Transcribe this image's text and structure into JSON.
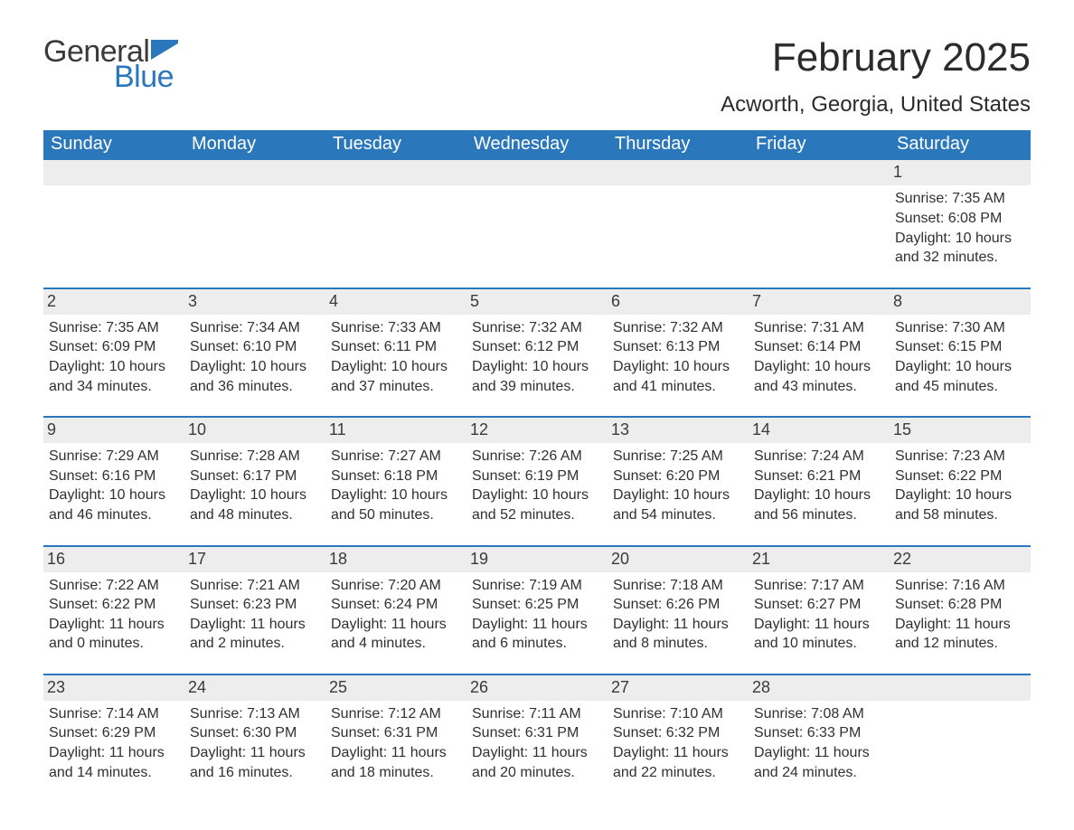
{
  "logo": {
    "word1": "General",
    "word2": "Blue",
    "flag_color": "#2a77bb"
  },
  "title": "February 2025",
  "location": "Acworth, Georgia, United States",
  "colors": {
    "header_bg": "#2a77bb",
    "header_text": "#ffffff",
    "daynum_bg": "#ededed",
    "week_border": "#2a77bb",
    "body_text": "#303030",
    "page_bg": "#ffffff"
  },
  "typography": {
    "title_fontsize": 44,
    "location_fontsize": 24,
    "weekday_fontsize": 20,
    "daynum_fontsize": 18,
    "body_fontsize": 16,
    "font_family": "Segoe UI, Arial, Helvetica, sans-serif"
  },
  "weekdays": [
    "Sunday",
    "Monday",
    "Tuesday",
    "Wednesday",
    "Thursday",
    "Friday",
    "Saturday"
  ],
  "weeks": [
    [
      {
        "n": "",
        "sunrise": "",
        "sunset": "",
        "daylight": ""
      },
      {
        "n": "",
        "sunrise": "",
        "sunset": "",
        "daylight": ""
      },
      {
        "n": "",
        "sunrise": "",
        "sunset": "",
        "daylight": ""
      },
      {
        "n": "",
        "sunrise": "",
        "sunset": "",
        "daylight": ""
      },
      {
        "n": "",
        "sunrise": "",
        "sunset": "",
        "daylight": ""
      },
      {
        "n": "",
        "sunrise": "",
        "sunset": "",
        "daylight": ""
      },
      {
        "n": "1",
        "sunrise": "Sunrise: 7:35 AM",
        "sunset": "Sunset: 6:08 PM",
        "daylight": "Daylight: 10 hours and 32 minutes."
      }
    ],
    [
      {
        "n": "2",
        "sunrise": "Sunrise: 7:35 AM",
        "sunset": "Sunset: 6:09 PM",
        "daylight": "Daylight: 10 hours and 34 minutes."
      },
      {
        "n": "3",
        "sunrise": "Sunrise: 7:34 AM",
        "sunset": "Sunset: 6:10 PM",
        "daylight": "Daylight: 10 hours and 36 minutes."
      },
      {
        "n": "4",
        "sunrise": "Sunrise: 7:33 AM",
        "sunset": "Sunset: 6:11 PM",
        "daylight": "Daylight: 10 hours and 37 minutes."
      },
      {
        "n": "5",
        "sunrise": "Sunrise: 7:32 AM",
        "sunset": "Sunset: 6:12 PM",
        "daylight": "Daylight: 10 hours and 39 minutes."
      },
      {
        "n": "6",
        "sunrise": "Sunrise: 7:32 AM",
        "sunset": "Sunset: 6:13 PM",
        "daylight": "Daylight: 10 hours and 41 minutes."
      },
      {
        "n": "7",
        "sunrise": "Sunrise: 7:31 AM",
        "sunset": "Sunset: 6:14 PM",
        "daylight": "Daylight: 10 hours and 43 minutes."
      },
      {
        "n": "8",
        "sunrise": "Sunrise: 7:30 AM",
        "sunset": "Sunset: 6:15 PM",
        "daylight": "Daylight: 10 hours and 45 minutes."
      }
    ],
    [
      {
        "n": "9",
        "sunrise": "Sunrise: 7:29 AM",
        "sunset": "Sunset: 6:16 PM",
        "daylight": "Daylight: 10 hours and 46 minutes."
      },
      {
        "n": "10",
        "sunrise": "Sunrise: 7:28 AM",
        "sunset": "Sunset: 6:17 PM",
        "daylight": "Daylight: 10 hours and 48 minutes."
      },
      {
        "n": "11",
        "sunrise": "Sunrise: 7:27 AM",
        "sunset": "Sunset: 6:18 PM",
        "daylight": "Daylight: 10 hours and 50 minutes."
      },
      {
        "n": "12",
        "sunrise": "Sunrise: 7:26 AM",
        "sunset": "Sunset: 6:19 PM",
        "daylight": "Daylight: 10 hours and 52 minutes."
      },
      {
        "n": "13",
        "sunrise": "Sunrise: 7:25 AM",
        "sunset": "Sunset: 6:20 PM",
        "daylight": "Daylight: 10 hours and 54 minutes."
      },
      {
        "n": "14",
        "sunrise": "Sunrise: 7:24 AM",
        "sunset": "Sunset: 6:21 PM",
        "daylight": "Daylight: 10 hours and 56 minutes."
      },
      {
        "n": "15",
        "sunrise": "Sunrise: 7:23 AM",
        "sunset": "Sunset: 6:22 PM",
        "daylight": "Daylight: 10 hours and 58 minutes."
      }
    ],
    [
      {
        "n": "16",
        "sunrise": "Sunrise: 7:22 AM",
        "sunset": "Sunset: 6:22 PM",
        "daylight": "Daylight: 11 hours and 0 minutes."
      },
      {
        "n": "17",
        "sunrise": "Sunrise: 7:21 AM",
        "sunset": "Sunset: 6:23 PM",
        "daylight": "Daylight: 11 hours and 2 minutes."
      },
      {
        "n": "18",
        "sunrise": "Sunrise: 7:20 AM",
        "sunset": "Sunset: 6:24 PM",
        "daylight": "Daylight: 11 hours and 4 minutes."
      },
      {
        "n": "19",
        "sunrise": "Sunrise: 7:19 AM",
        "sunset": "Sunset: 6:25 PM",
        "daylight": "Daylight: 11 hours and 6 minutes."
      },
      {
        "n": "20",
        "sunrise": "Sunrise: 7:18 AM",
        "sunset": "Sunset: 6:26 PM",
        "daylight": "Daylight: 11 hours and 8 minutes."
      },
      {
        "n": "21",
        "sunrise": "Sunrise: 7:17 AM",
        "sunset": "Sunset: 6:27 PM",
        "daylight": "Daylight: 11 hours and 10 minutes."
      },
      {
        "n": "22",
        "sunrise": "Sunrise: 7:16 AM",
        "sunset": "Sunset: 6:28 PM",
        "daylight": "Daylight: 11 hours and 12 minutes."
      }
    ],
    [
      {
        "n": "23",
        "sunrise": "Sunrise: 7:14 AM",
        "sunset": "Sunset: 6:29 PM",
        "daylight": "Daylight: 11 hours and 14 minutes."
      },
      {
        "n": "24",
        "sunrise": "Sunrise: 7:13 AM",
        "sunset": "Sunset: 6:30 PM",
        "daylight": "Daylight: 11 hours and 16 minutes."
      },
      {
        "n": "25",
        "sunrise": "Sunrise: 7:12 AM",
        "sunset": "Sunset: 6:31 PM",
        "daylight": "Daylight: 11 hours and 18 minutes."
      },
      {
        "n": "26",
        "sunrise": "Sunrise: 7:11 AM",
        "sunset": "Sunset: 6:31 PM",
        "daylight": "Daylight: 11 hours and 20 minutes."
      },
      {
        "n": "27",
        "sunrise": "Sunrise: 7:10 AM",
        "sunset": "Sunset: 6:32 PM",
        "daylight": "Daylight: 11 hours and 22 minutes."
      },
      {
        "n": "28",
        "sunrise": "Sunrise: 7:08 AM",
        "sunset": "Sunset: 6:33 PM",
        "daylight": "Daylight: 11 hours and 24 minutes."
      },
      {
        "n": "",
        "sunrise": "",
        "sunset": "",
        "daylight": ""
      }
    ]
  ]
}
